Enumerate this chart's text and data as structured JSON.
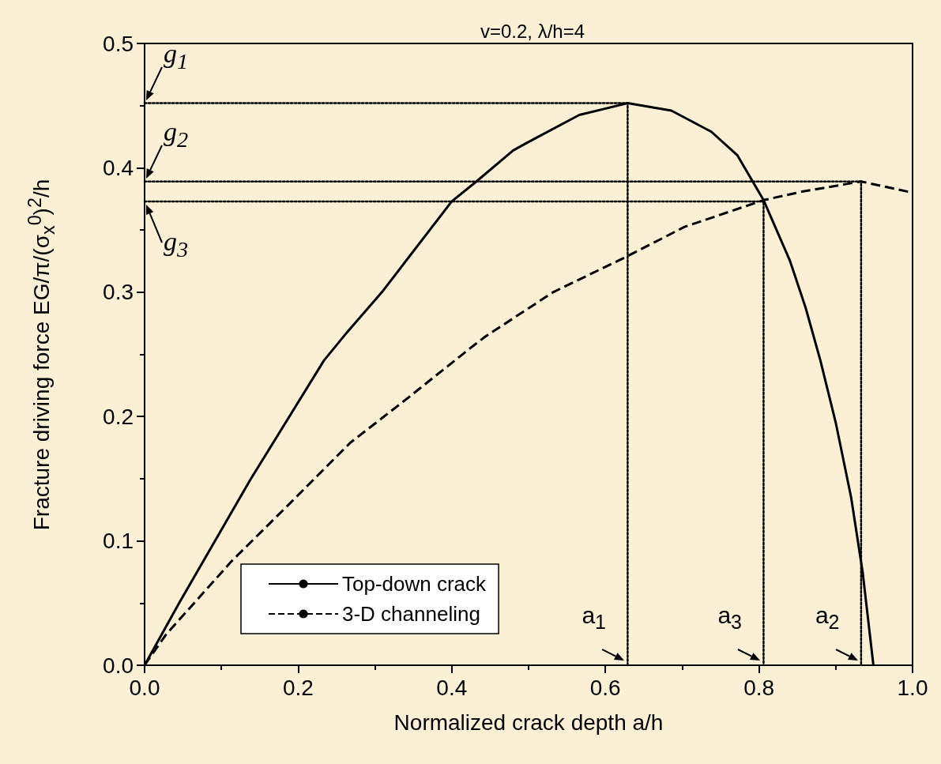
{
  "chart_data": {
    "type": "line",
    "title": "v=0.2, λ/h=4",
    "xlabel": "Normalized crack depth a/h",
    "ylabel": "Fracture driving force EG/π/(σ$_{x}$$^{0}$)$^{2}$/h",
    "xlim": [
      0,
      1
    ],
    "ylim": [
      0,
      0.5
    ],
    "xticks": [
      {
        "value": 0,
        "label": "0.0"
      },
      {
        "value": 0.2,
        "label": "0.2"
      },
      {
        "value": 0.4,
        "label": "0.4"
      },
      {
        "value": 0.6,
        "label": "0.6"
      },
      {
        "value": 0.8,
        "label": "0.8"
      },
      {
        "value": 1,
        "label": "1.0"
      }
    ],
    "yticks": [
      {
        "value": 0,
        "label": "0.0"
      },
      {
        "value": 0.1,
        "label": "0.1"
      },
      {
        "value": 0.2,
        "label": "0.2"
      },
      {
        "value": 0.3,
        "label": "0.3"
      },
      {
        "value": 0.4,
        "label": "0.4"
      },
      {
        "value": 0.5,
        "label": "0.5"
      }
    ],
    "grid": false,
    "legend": "bottom left",
    "marker": "none",
    "series": [
      {
        "name": "Top-down crack",
        "color": "#000000",
        "line_style": "solid",
        "x": [
          0,
          0.045,
          0.1375,
          0.2335,
          0.264,
          0.309,
          0.4,
          0.432,
          0.48,
          0.4976,
          0.566,
          0.629,
          0.686,
          0.738,
          0.772,
          0.806,
          0.8405,
          0.861,
          0.88,
          0.9,
          0.92,
          0.935,
          0.949
        ],
        "values": [
          0,
          0.05,
          0.149,
          0.245,
          0.268,
          0.3,
          0.373,
          0.389,
          0.414,
          0.42,
          0.4425,
          0.452,
          0.446,
          0.429,
          0.41,
          0.374,
          0.325,
          0.287,
          0.245,
          0.195,
          0.135,
          0.075,
          0
        ]
      },
      {
        "name": "3-D channeling",
        "color": "#000000",
        "line_style": "dashed",
        "x": [
          0,
          0.0278,
          0.1135,
          0.189,
          0.268,
          0.343,
          0.422,
          0.443,
          0.532,
          0.629,
          0.703,
          0.806,
          0.8575,
          0.933,
          1
        ],
        "values": [
          0,
          0.0246,
          0.0838,
          0.13,
          0.179,
          0.215,
          0.254,
          0.264,
          0.3,
          0.329,
          0.3525,
          0.374,
          0.381,
          0.389,
          0.38
        ]
      },
      {
        "color": "#000000",
        "line_style": "dotted",
        "x": [
          0,
          0.629,
          0.629
        ],
        "values": [
          0.452,
          0.452,
          0
        ]
      },
      {
        "color": "#000000",
        "line_style": "dotted",
        "x": [
          0,
          0.933,
          0.933
        ],
        "values": [
          0.389,
          0.389,
          0
        ]
      },
      {
        "color": "#000000",
        "line_style": "dotted",
        "x": [
          0,
          0.806,
          0.806
        ],
        "values": [
          0.373,
          0.373,
          0
        ]
      }
    ],
    "annotations": [
      {
        "text": "g$_{1}$",
        "x": 0,
        "y": 0.452
      },
      {
        "text": "g$_{2}$",
        "x": 0,
        "y": 0.389
      },
      {
        "text": "g$_{3}$",
        "x": 0,
        "y": 0.373
      },
      {
        "text": "a$_{1}$",
        "x": 0.629,
        "y": 0
      },
      {
        "text": "a$_{3}$",
        "x": 0.806,
        "y": 0
      },
      {
        "text": "a$_{2}$",
        "x": 0.933,
        "y": 0
      }
    ]
  }
}
